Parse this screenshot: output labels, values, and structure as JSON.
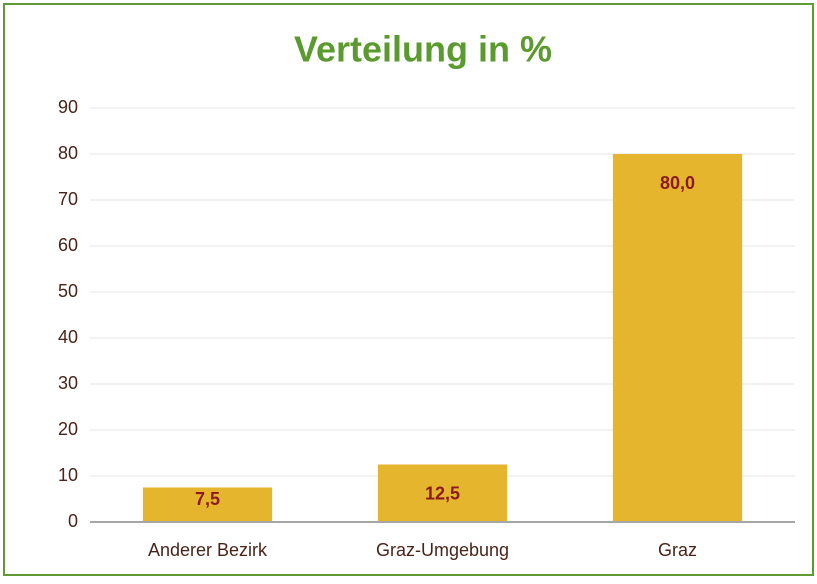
{
  "chart_data": {
    "type": "bar",
    "title": "Verteilung in %",
    "categories": [
      "Anderer Bezirk",
      "Graz-Umgebung",
      "Graz"
    ],
    "values": [
      7.5,
      12.5,
      80.0
    ],
    "value_labels": [
      "7,5",
      "12,5",
      "80,0"
    ],
    "color": "#e6b52e",
    "ylim": [
      0,
      90
    ],
    "yticks": [
      0,
      10,
      20,
      30,
      40,
      50,
      60,
      70,
      80,
      90
    ],
    "grid": true
  }
}
